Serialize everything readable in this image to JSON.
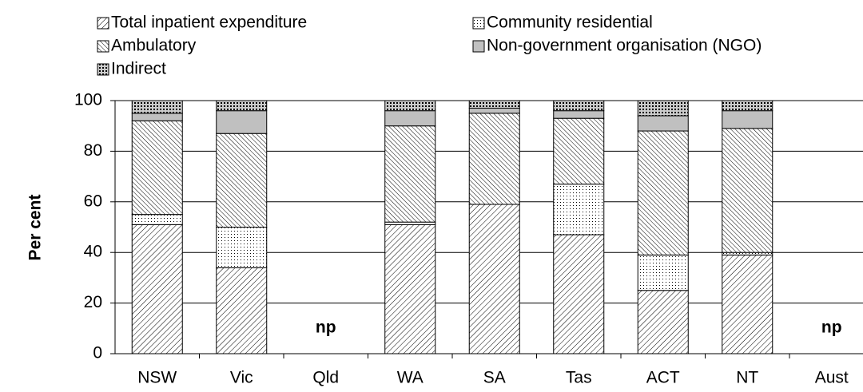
{
  "chart_data": {
    "type": "stacked_bar",
    "y_label": "Per cent",
    "categories": [
      "NSW",
      "Vic",
      "Qld",
      "WA",
      "SA",
      "Tas",
      "ACT",
      "NT",
      "Aust"
    ],
    "series": [
      {
        "name": "Total inpatient expenditure",
        "color": "#000000",
        "pattern": "forward-diagonal",
        "values": [
          51,
          34,
          null,
          51,
          59,
          47,
          25,
          39,
          null
        ]
      },
      {
        "name": "Community residential",
        "color": "#000000",
        "pattern": "dots",
        "values": [
          4,
          16,
          null,
          1,
          0,
          20,
          14,
          1,
          null
        ]
      },
      {
        "name": "Ambulatory",
        "color": "#000000",
        "pattern": "back-diagonal",
        "values": [
          37,
          37,
          null,
          38,
          36,
          26,
          49,
          49,
          null
        ]
      },
      {
        "name": "Non-government organisation (NGO)",
        "color": "#c0c0c0",
        "pattern": "solid",
        "values": [
          3,
          9,
          null,
          6,
          2,
          3,
          6,
          7,
          null
        ]
      },
      {
        "name": "Indirect",
        "color": "#000000",
        "pattern": "crosshatch",
        "values": [
          5,
          4,
          null,
          4,
          3,
          4,
          6,
          4,
          null
        ]
      }
    ],
    "annotations": [
      {
        "text": "np",
        "category": "Qld"
      },
      {
        "text": "np",
        "category": "Aust"
      }
    ],
    "ylim": [
      0,
      100
    ],
    "yticks": [
      0,
      20,
      40,
      60,
      80,
      100
    ],
    "grid": true
  }
}
